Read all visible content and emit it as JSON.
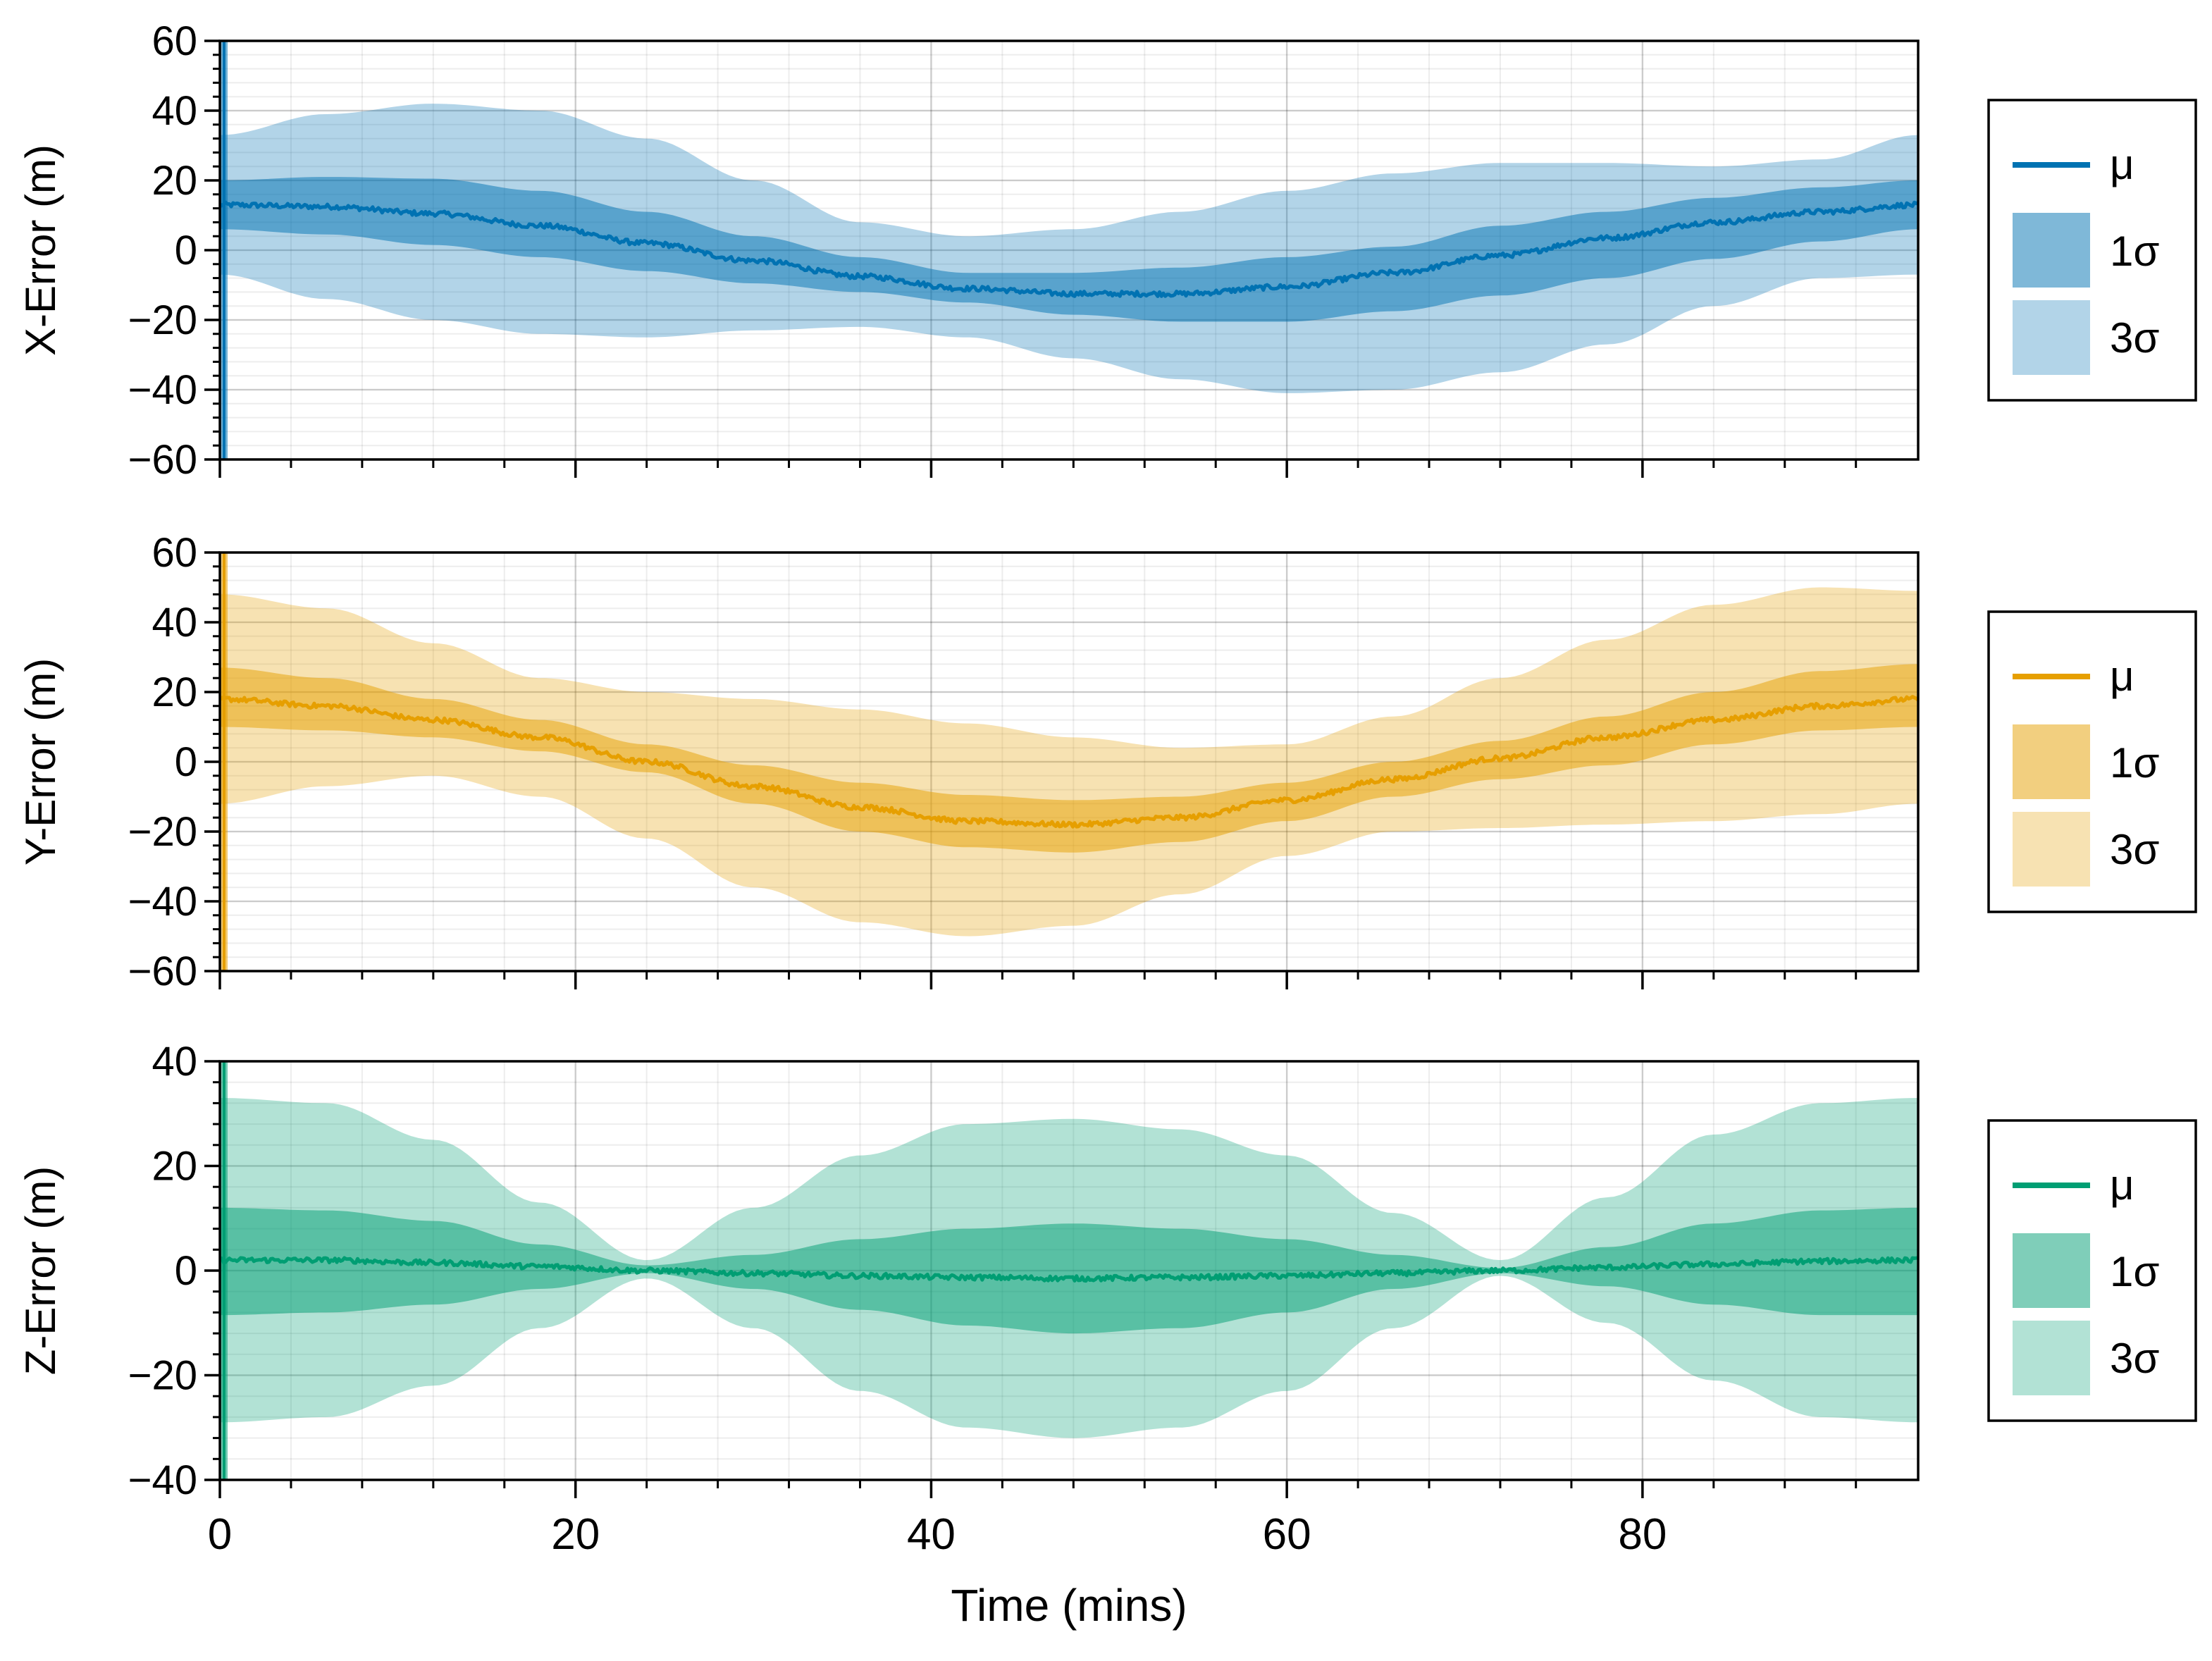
{
  "chart_data": {
    "type": "area",
    "xlabel": "Time (mins)",
    "xlim": [
      0,
      95.5
    ],
    "x_ticks": [
      0,
      20,
      40,
      60,
      80
    ],
    "x_minor_step": 4,
    "x_tick_labels": [
      "0",
      "20",
      "40",
      "60",
      "80"
    ],
    "panels": [
      {
        "name": "x-error",
        "ylabel": "X-Error (m)",
        "ylim": [
          -60,
          60
        ],
        "y_ticks": [
          -60,
          -40,
          -20,
          0,
          20,
          40,
          60
        ],
        "y_tick_labels": [
          "−60",
          "−40",
          "−20",
          "0",
          "20",
          "40",
          "60"
        ],
        "y_minor_step": 4,
        "color": "#0072b2",
        "legend": {
          "mean": "μ",
          "band1": "1σ",
          "band3": "3σ"
        },
        "x": [
          0,
          6,
          12,
          18,
          24,
          30,
          36,
          42,
          48,
          54,
          60,
          66,
          72,
          78,
          84,
          90,
          95.5
        ],
        "mean": [
          13,
          12.5,
          10.5,
          7,
          2,
          -3,
          -7.5,
          -11,
          -12.5,
          -12.5,
          -10.5,
          -6.5,
          -1.5,
          3.5,
          8,
          11,
          13
        ],
        "sigma1_low": [
          6,
          4.5,
          1.5,
          -2,
          -6,
          -9.5,
          -12,
          -15,
          -18.5,
          -20.5,
          -20.5,
          -17.5,
          -13,
          -8,
          -2.5,
          2.5,
          6
        ],
        "sigma1_high": [
          20,
          21,
          20.5,
          17,
          11,
          4,
          -2,
          -6.5,
          -6.5,
          -5,
          -2,
          1,
          7,
          11,
          15,
          18,
          20
        ],
        "sigma3_low": [
          -7,
          -14,
          -20,
          -24,
          -25,
          -23,
          -22,
          -25,
          -31,
          -37,
          -41,
          -40,
          -35,
          -27,
          -16,
          -8,
          -7
        ],
        "sigma3_high": [
          33,
          39,
          42,
          40,
          32,
          20,
          8,
          4,
          6,
          11,
          17,
          22,
          25,
          25,
          24,
          26,
          33
        ]
      },
      {
        "name": "y-error",
        "ylabel": "Y-Error (m)",
        "ylim": [
          -60,
          60
        ],
        "y_ticks": [
          -60,
          -40,
          -20,
          0,
          20,
          40,
          60
        ],
        "y_tick_labels": [
          "−60",
          "−40",
          "−20",
          "0",
          "20",
          "40",
          "60"
        ],
        "y_minor_step": 4,
        "color": "#e69f00",
        "legend": {
          "mean": "μ",
          "band1": "1σ",
          "band3": "3σ"
        },
        "x": [
          0,
          6,
          12,
          18,
          24,
          30,
          36,
          42,
          48,
          54,
          60,
          66,
          72,
          78,
          84,
          90,
          95.5
        ],
        "mean": [
          18,
          16,
          12,
          7,
          0,
          -7,
          -13,
          -17,
          -18,
          -16,
          -11,
          -5,
          1,
          7,
          12,
          16,
          18
        ],
        "sigma1_low": [
          10,
          9,
          7,
          3,
          -3,
          -12,
          -20,
          -24.5,
          -26,
          -23,
          -17,
          -10,
          -5,
          -1,
          5,
          9,
          10
        ],
        "sigma1_high": [
          27,
          24,
          18,
          12,
          5,
          -1,
          -6,
          -9.5,
          -11,
          -10,
          -6,
          0,
          6,
          13,
          20,
          26,
          28
        ],
        "sigma3_low": [
          -12,
          -7,
          -4,
          -10,
          -22,
          -36,
          -46,
          -50,
          -47,
          -38,
          -27,
          -20,
          -19,
          -18,
          -17,
          -15,
          -12
        ],
        "sigma3_high": [
          48,
          44,
          34,
          24,
          20,
          18,
          15,
          11,
          7,
          4,
          5,
          13,
          24,
          35,
          45,
          50,
          49
        ]
      },
      {
        "name": "z-error",
        "ylabel": "Z-Error (m)",
        "ylim": [
          -40,
          40
        ],
        "y_ticks": [
          -40,
          -20,
          0,
          20,
          40
        ],
        "y_tick_labels": [
          "−40",
          "−20",
          "0",
          "20",
          "40"
        ],
        "y_minor_step": 4,
        "color": "#009e73",
        "legend": {
          "mean": "μ",
          "band1": "1σ",
          "band3": "3σ"
        },
        "x": [
          0,
          6,
          12,
          18,
          24,
          30,
          36,
          42,
          48,
          54,
          60,
          66,
          72,
          78,
          84,
          90,
          95.5
        ],
        "mean": [
          2,
          2,
          1.5,
          0.8,
          0,
          -0.5,
          -1,
          -1.3,
          -1.5,
          -1.3,
          -1,
          -0.5,
          0,
          0.6,
          1.2,
          1.8,
          2
        ],
        "sigma1_low": [
          -8.5,
          -8,
          -6.5,
          -3.5,
          -0.5,
          -3.5,
          -7.5,
          -10.5,
          -12,
          -11,
          -8,
          -3.5,
          -0.5,
          -3,
          -6.5,
          -8.5,
          -8.5
        ],
        "sigma1_high": [
          12,
          11.5,
          9.5,
          5,
          1,
          3,
          6,
          8,
          9,
          8,
          6,
          3,
          0.5,
          4.5,
          9,
          11.5,
          12
        ],
        "sigma3_low": [
          -29,
          -28,
          -22,
          -11,
          -1.5,
          -11,
          -23,
          -30,
          -32,
          -30,
          -23,
          -11,
          -1,
          -10,
          -21,
          -28,
          -29
        ],
        "sigma3_high": [
          33,
          32,
          25,
          13,
          2,
          12,
          22,
          28,
          29,
          27,
          22,
          11,
          2,
          14,
          26,
          32,
          33
        ]
      }
    ]
  }
}
